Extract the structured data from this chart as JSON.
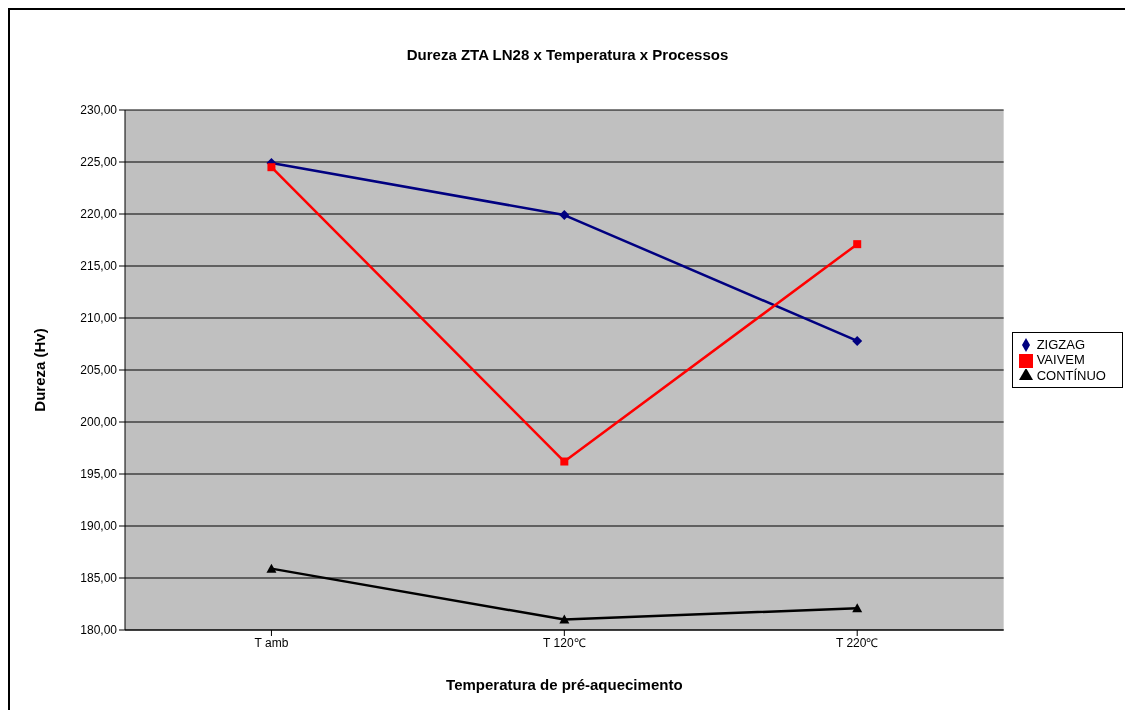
{
  "chart_data": {
    "type": "line",
    "title": "Dureza ZTA LN28 x Temperatura x Processos",
    "xlabel": "Temperatura de pré-aquecimento",
    "ylabel": "Dureza (Hv)",
    "categories": [
      "T amb",
      "T 120℃",
      "T 220℃"
    ],
    "series": [
      {
        "name": "ZIGZAG",
        "color": "#000080",
        "marker": "diamond",
        "values": [
          224.9,
          219.9,
          207.8
        ]
      },
      {
        "name": "VAIVEM",
        "color": "#ff0000",
        "marker": "square",
        "values": [
          224.5,
          196.2,
          217.1
        ]
      },
      {
        "name": "CONTÍNUO",
        "color": "#000000",
        "marker": "triangle",
        "values": [
          185.9,
          181.0,
          182.1
        ]
      }
    ],
    "ylim": [
      180,
      230
    ],
    "yticks": [
      {
        "value": 180,
        "label": "180,00"
      },
      {
        "value": 185,
        "label": "185,00"
      },
      {
        "value": 190,
        "label": "190,00"
      },
      {
        "value": 195,
        "label": "195,00"
      },
      {
        "value": 200,
        "label": "200,00"
      },
      {
        "value": 205,
        "label": "205,00"
      },
      {
        "value": 210,
        "label": "210,00"
      },
      {
        "value": 215,
        "label": "215,00"
      },
      {
        "value": 220,
        "label": "220,00"
      },
      {
        "value": 225,
        "label": "225,00"
      },
      {
        "value": 230,
        "label": "230,00"
      }
    ],
    "grid": "y",
    "legend": "right",
    "line_style": "solid"
  }
}
